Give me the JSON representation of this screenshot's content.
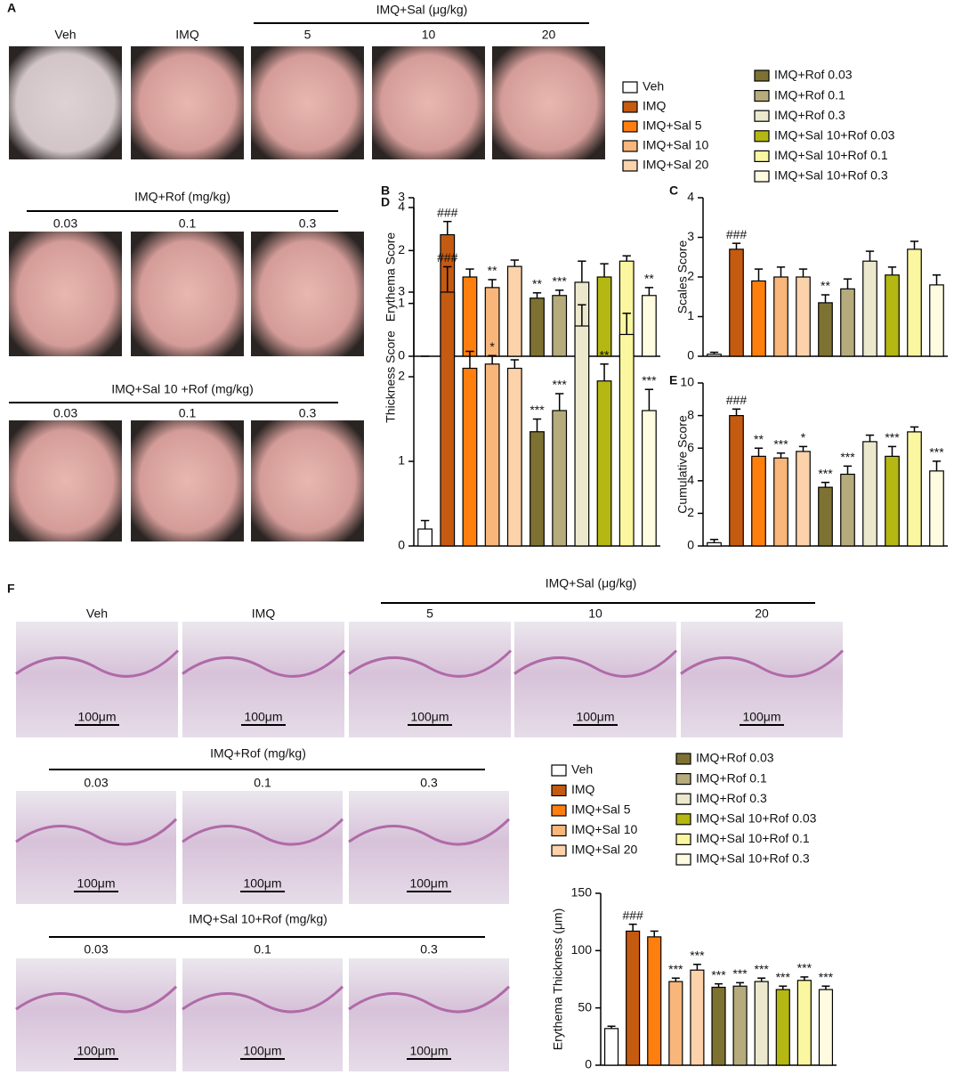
{
  "panel_A": {
    "label": "A",
    "rows": [
      {
        "header": "IMQ+Sal (μg/kg)",
        "captions": [
          "Veh",
          "IMQ",
          "5",
          "10",
          "20"
        ]
      },
      {
        "header": "IMQ+Rof (mg/kg)",
        "captions": [
          "0.03",
          "0.1",
          "0.3"
        ]
      },
      {
        "header": "IMQ+Sal 10 +Rof (mg/kg)",
        "captions": [
          "0.03",
          "0.1",
          "0.3"
        ]
      }
    ]
  },
  "panel_F": {
    "label": "F",
    "scale_bar": "100μm",
    "rows": [
      {
        "header": "IMQ+Sal (μg/kg)",
        "captions": [
          "Veh",
          "IMQ",
          "5",
          "10",
          "20"
        ]
      },
      {
        "header": "IMQ+Rof (mg/kg)",
        "captions": [
          "0.03",
          "0.1",
          "0.3"
        ]
      },
      {
        "header": "IMQ+Sal 10+Rof (mg/kg)",
        "captions": [
          "0.03",
          "0.1",
          "0.3"
        ]
      }
    ]
  },
  "legends": [
    {
      "names": [
        "Veh",
        "IMQ",
        "IMQ+Sal 5",
        "IMQ+Sal 10",
        "IMQ+Sal 20",
        "IMQ+Rof 0.03",
        "IMQ+Rof 0.1",
        "IMQ+Rof 0.3",
        "IMQ+Sal 10+Rof 0.03",
        "IMQ+Sal 10+Rof 0.1",
        "IMQ+Sal 10+Rof 0.3"
      ]
    },
    {
      "names": [
        "Veh",
        "IMQ",
        "IMQ+Sal 5",
        "IMQ+Sal 10",
        "IMQ+Sal 20",
        "IMQ+Rof 0.03",
        "IMQ+Rof 0.1",
        "IMQ+Rof 0.3",
        "IMQ+Sal 10+Rof 0.03",
        "IMQ+Sal 10+Rof 0.1",
        "IMQ+Sal 10+Rof 0.3"
      ]
    }
  ],
  "chart_data": [
    {
      "type": "bar",
      "panel_label": "B",
      "ylabel": "Erythema Score",
      "categories": [
        null,
        null,
        null,
        null,
        null,
        null,
        null,
        null,
        null,
        null,
        null
      ],
      "values": [
        0,
        2.3,
        1.5,
        1.3,
        1.7,
        1.1,
        1.15,
        1.4,
        1.5,
        1.8,
        1.15
      ],
      "errors": [
        0,
        0.25,
        0.15,
        0.15,
        0.12,
        0.1,
        0.1,
        0.4,
        0.25,
        0.1,
        0.15
      ],
      "annotations": [
        "",
        "###",
        "",
        "**",
        "",
        "**",
        "***",
        "",
        "",
        "",
        "**"
      ],
      "colors": [
        "#ffffff",
        "#c55a11",
        "#ff7f0e",
        "#f8b67b",
        "#fcd2ab",
        "#7d7232",
        "#b5ab7c",
        "#ece8cd",
        "#b5b713",
        "#fbf6a0",
        "#fffbe0"
      ],
      "ylim": [
        0,
        3
      ],
      "yticks": [
        0,
        1,
        2,
        3
      ]
    },
    {
      "type": "bar",
      "panel_label": "C",
      "ylabel": "Scales Score",
      "categories": [
        null,
        null,
        null,
        null,
        null,
        null,
        null,
        null,
        null,
        null,
        null
      ],
      "values": [
        0.05,
        2.7,
        1.9,
        2.0,
        2.0,
        1.35,
        1.7,
        2.4,
        2.05,
        2.7,
        1.8
      ],
      "errors": [
        0.05,
        0.15,
        0.3,
        0.25,
        0.2,
        0.2,
        0.25,
        0.25,
        0.2,
        0.2,
        0.25
      ],
      "annotations": [
        "",
        "###",
        "",
        "",
        "",
        "**",
        "",
        "",
        "",
        "",
        ""
      ],
      "colors": [
        "#ffffff",
        "#c55a11",
        "#ff7f0e",
        "#f8b67b",
        "#fcd2ab",
        "#7d7232",
        "#b5ab7c",
        "#ece8cd",
        "#b5b713",
        "#fbf6a0",
        "#fffbe0"
      ],
      "ylim": [
        0,
        4
      ],
      "yticks": [
        0,
        1,
        2,
        3,
        4
      ]
    },
    {
      "type": "bar",
      "panel_label": "D",
      "ylabel": "Thickness Score",
      "categories": [
        null,
        null,
        null,
        null,
        null,
        null,
        null,
        null,
        null,
        null,
        null
      ],
      "values": [
        0.2,
        3.0,
        2.1,
        2.15,
        2.1,
        1.35,
        1.6,
        2.6,
        1.95,
        2.5,
        1.6
      ],
      "errors": [
        0.1,
        0.3,
        0.2,
        0.1,
        0.1,
        0.15,
        0.2,
        0.25,
        0.2,
        0.25,
        0.25
      ],
      "annotations": [
        "",
        "###",
        "",
        "*",
        "",
        "***",
        "***",
        "",
        "**",
        "",
        "***"
      ],
      "colors": [
        "#ffffff",
        "#c55a11",
        "#ff7f0e",
        "#f8b67b",
        "#fcd2ab",
        "#7d7232",
        "#b5ab7c",
        "#ece8cd",
        "#b5b713",
        "#fbf6a0",
        "#fffbe0"
      ],
      "ylim": [
        0,
        4
      ],
      "yticks": [
        0,
        1,
        2,
        3,
        4
      ]
    },
    {
      "type": "bar",
      "panel_label": "E",
      "ylabel": "Cumulative Score",
      "categories": [
        null,
        null,
        null,
        null,
        null,
        null,
        null,
        null,
        null,
        null,
        null
      ],
      "values": [
        0.2,
        8.0,
        5.5,
        5.4,
        5.8,
        3.6,
        4.4,
        6.4,
        5.5,
        7.0,
        4.6
      ],
      "errors": [
        0.2,
        0.4,
        0.5,
        0.3,
        0.3,
        0.3,
        0.5,
        0.4,
        0.6,
        0.3,
        0.6
      ],
      "annotations": [
        "",
        "###",
        "**",
        "***",
        "*",
        "***",
        "***",
        "",
        "***",
        "",
        "***"
      ],
      "colors": [
        "#ffffff",
        "#c55a11",
        "#ff7f0e",
        "#f8b67b",
        "#fcd2ab",
        "#7d7232",
        "#b5ab7c",
        "#ece8cd",
        "#b5b713",
        "#fbf6a0",
        "#fffbe0"
      ],
      "ylim": [
        0,
        10
      ],
      "yticks": [
        0,
        2,
        4,
        6,
        8,
        10
      ]
    },
    {
      "type": "bar",
      "ylabel": "Erythema Thickness (μm)",
      "categories": [
        null,
        null,
        null,
        null,
        null,
        null,
        null,
        null,
        null,
        null,
        null
      ],
      "values": [
        32,
        117,
        112,
        73,
        83,
        68,
        69,
        73,
        66,
        74,
        66
      ],
      "errors": [
        2,
        6,
        5,
        3,
        5,
        3,
        3,
        3,
        3,
        3,
        3
      ],
      "annotations": [
        "",
        "###",
        "",
        "***",
        "***",
        "***",
        "***",
        "***",
        "***",
        "***",
        "***"
      ],
      "colors": [
        "#ffffff",
        "#c55a11",
        "#ff7f0e",
        "#f8b67b",
        "#fcd2ab",
        "#7d7232",
        "#b5ab7c",
        "#ece8cd",
        "#b5b713",
        "#fbf6a0",
        "#fffbe0"
      ],
      "ylim": [
        0,
        150
      ],
      "yticks": [
        0,
        50,
        100,
        150
      ]
    }
  ]
}
